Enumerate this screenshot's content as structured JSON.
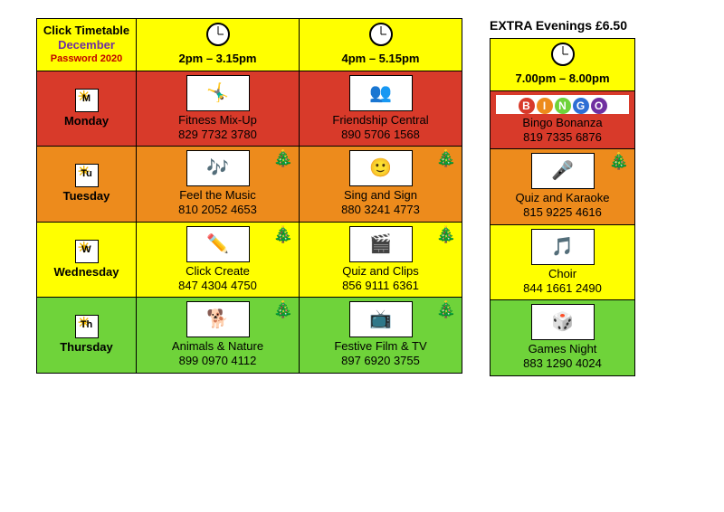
{
  "header": {
    "title_line1": "Click Timetable",
    "month": "December",
    "password": "Password 2020"
  },
  "time_slots": [
    "2pm – 3.15pm",
    "4pm – 5.15pm"
  ],
  "row_colors": {
    "monday": "#d83a2a",
    "tuesday": "#ed8b1c",
    "wednesday": "#ffff00",
    "thursday": "#6fd33a"
  },
  "days": [
    {
      "key": "monday",
      "label": "Monday",
      "short": "M",
      "slots": [
        {
          "name": "Fitness Mix-Up",
          "phone": "829 7732 3780",
          "icon": "🤸‍♂️",
          "tree": false
        },
        {
          "name": "Friendship Central",
          "phone": "890 5706 1568",
          "icon": "👥",
          "tree": false
        }
      ]
    },
    {
      "key": "tuesday",
      "label": "Tuesday",
      "short": "Tu",
      "slots": [
        {
          "name": "Feel the Music",
          "phone": "810 2052 4653",
          "icon": "🎶",
          "tree": true
        },
        {
          "name": "Sing and Sign",
          "phone": "880 3241 4773",
          "icon": "🙂",
          "tree": true
        }
      ]
    },
    {
      "key": "wednesday",
      "label": "Wednesday",
      "short": "W",
      "slots": [
        {
          "name": "Click Create",
          "phone": "847 4304 4750",
          "icon": "✏️",
          "tree": true
        },
        {
          "name": "Quiz and Clips",
          "phone": "856 9111 6361",
          "icon": "🎬",
          "tree": true
        }
      ]
    },
    {
      "key": "thursday",
      "label": "Thursday",
      "short": "Th",
      "slots": [
        {
          "name": "Animals & Nature",
          "phone": "899 0970 4112",
          "icon": "🐕",
          "tree": true
        },
        {
          "name": "Festive Film & TV",
          "phone": "897 6920 3755",
          "icon": "📺",
          "tree": true
        }
      ]
    }
  ],
  "extra": {
    "title": "EXTRA Evenings £6.50",
    "time": "7.00pm – 8.00pm",
    "activities": [
      {
        "key": "monday",
        "name": "Bingo Bonanza",
        "phone": "819 7335 6876",
        "icon": "BINGO",
        "tree": false
      },
      {
        "key": "tuesday",
        "name": "Quiz and Karaoke",
        "phone": "815 9225 4616",
        "icon": "🎤",
        "tree": true
      },
      {
        "key": "wednesday",
        "name": "Choir",
        "phone": "844 1661 2490",
        "icon": "🎵",
        "tree": false
      },
      {
        "key": "thursday",
        "name": "Games Night",
        "phone": "883 1290 4024",
        "icon": "🎲",
        "tree": false
      }
    ],
    "bingo_colors": [
      "#d83a2a",
      "#ed8b1c",
      "#6fd33a",
      "#2e6fd4",
      "#7030a0"
    ]
  }
}
